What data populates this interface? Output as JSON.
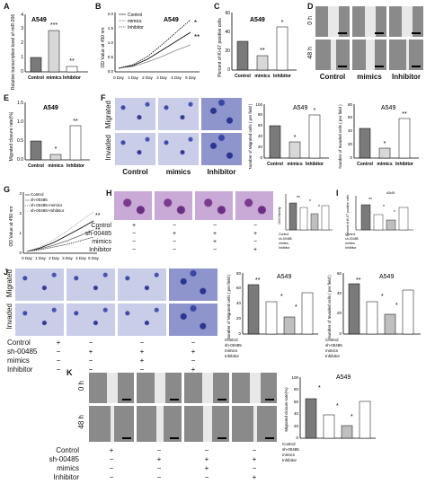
{
  "panel_letters": [
    "A",
    "B",
    "C",
    "D",
    "E",
    "F",
    "G",
    "H",
    "I",
    "J",
    "K"
  ],
  "cell_line": "A549",
  "time_labels": {
    "t0": "0 h",
    "t48": "48 h"
  },
  "row_labels": {
    "migrated": "Migrated",
    "invaded": "Invaded"
  },
  "groups_abc": [
    "Control",
    "mimics",
    "Inhibitor"
  ],
  "treatment_rows": [
    "Control",
    "sh-00485",
    "mimics",
    "Inhibitor"
  ],
  "panel_A": {
    "ylabel": "Relative transcription level of miR-206",
    "categories": [
      "Control",
      "mimics",
      "Inhibitor"
    ],
    "values": [
      1.0,
      3.0,
      0.4
    ],
    "ylim": [
      0,
      4
    ],
    "yticks": [
      "0",
      "1",
      "2",
      "3",
      "4"
    ],
    "sig": [
      "",
      "***",
      "**"
    ]
  },
  "panel_B": {
    "ylabel": "OD Value at 450 nm",
    "xticks": [
      "0 Day",
      "1 Day",
      "2 Day",
      "3 Day",
      "4 Day",
      "5 Day"
    ],
    "yticks": [
      "0.0",
      "0.5",
      "1.0",
      "1.5",
      "2.0"
    ],
    "legend": [
      "Control",
      "mimics",
      "Inhibitor"
    ],
    "series": [
      {
        "name": "Control",
        "values": [
          0.2,
          0.3,
          0.5,
          0.8,
          1.1,
          1.4
        ]
      },
      {
        "name": "mimics",
        "values": [
          0.2,
          0.25,
          0.4,
          0.6,
          0.8,
          1.0
        ]
      },
      {
        "name": "Inhibitor",
        "values": [
          0.2,
          0.35,
          0.6,
          1.0,
          1.4,
          1.8
        ]
      }
    ],
    "sig": [
      "*",
      "**"
    ]
  },
  "panel_C": {
    "ylabel": "Percent of Ki-67 positive cells",
    "categories": [
      "Control",
      "mimics",
      "Inhibitor"
    ],
    "values": [
      30,
      15,
      45
    ],
    "ylim": [
      0,
      60
    ],
    "yticks": [
      "0",
      "20",
      "40",
      "60"
    ],
    "sig": [
      "",
      "**",
      "*"
    ]
  },
  "panel_E": {
    "ylabel": "Migrated closure rate(%)",
    "categories": [
      "Control",
      "mimics",
      "Inhibitor"
    ],
    "values": [
      0.5,
      0.15,
      0.9
    ],
    "ylim": [
      0,
      1.5
    ],
    "yticks": [
      "0.0",
      "0.5",
      "1.0",
      "1.5"
    ],
    "sig": [
      "",
      "*",
      "**"
    ]
  },
  "panel_F1": {
    "ylabel": "Number of Migrated cells ( per field )",
    "categories": [
      "Control",
      "mimics",
      "Inhibitor"
    ],
    "values": [
      60,
      30,
      80
    ],
    "ylim": [
      0,
      100
    ],
    "yticks": [
      "0",
      "20",
      "40",
      "60",
      "80",
      "100"
    ],
    "sig": [
      "",
      "*",
      "*"
    ]
  },
  "panel_F2": {
    "ylabel": "Number of Invaded cells ( per field )",
    "categories": [
      "Control",
      "mimics",
      "Inhibitor"
    ],
    "values": [
      45,
      15,
      60
    ],
    "ylim": [
      0,
      80
    ],
    "yticks": [
      "0",
      "20",
      "40",
      "60",
      "80"
    ],
    "sig": [
      "",
      "*",
      "**"
    ]
  },
  "panel_G": {
    "ylabel": "OD Value at 450 nm",
    "xticks": [
      "0 Day",
      "1 Day",
      "2 Day",
      "3 Day",
      "4 Day",
      "5 Day"
    ],
    "yticks": [
      "0",
      "1",
      "2",
      "3"
    ],
    "legend": [
      "Control",
      "sh-00485",
      "sh-00485+mimics",
      "sh-00485+Inhibitor"
    ],
    "sig": [
      "**",
      "**"
    ]
  },
  "panel_H": {
    "ylabel": "Cell Viability",
    "values": [
      0.9,
      0.75,
      0.55,
      0.8
    ],
    "sig": [
      "**",
      "*",
      "*"
    ]
  },
  "panel_I": {
    "ylabel": "Percent of Ki-67 positive cells",
    "values": [
      0.9,
      0.55,
      0.35,
      0.8
    ],
    "sig": [
      "**",
      "*",
      "*"
    ]
  },
  "panel_J1": {
    "ylabel": "Number of Migrated cells ( per field )",
    "values": [
      65,
      42,
      22,
      55
    ],
    "yticks": [
      "0",
      "20",
      "40",
      "60",
      "80"
    ],
    "sig": [
      "**",
      "*",
      "*"
    ]
  },
  "panel_J2": {
    "ylabel": "Number of Invaded cells ( per field )",
    "values": [
      50,
      32,
      20,
      44
    ],
    "yticks": [
      "0",
      "20",
      "40",
      "60"
    ],
    "sig": [
      "**",
      "*",
      "*"
    ]
  },
  "panel_K": {
    "ylabel": "Migrated closure rate(%)",
    "values": [
      65,
      38,
      20,
      60
    ],
    "yticks": [
      "0",
      "20",
      "40",
      "60",
      "80",
      "100"
    ],
    "sig": [
      "*",
      "*",
      "*"
    ]
  },
  "matrix": {
    "control": [
      "+",
      "−",
      "−",
      "−"
    ],
    "sh": [
      "−",
      "+",
      "+",
      "+"
    ],
    "mimics": [
      "−",
      "−",
      "+",
      "−"
    ],
    "inhibitor": [
      "−",
      "−",
      "−",
      "+"
    ]
  },
  "colors": {
    "dark_bar": "#7a7a7a",
    "light_bar": "#ffffff",
    "mid_bar": "#bfbfbf"
  }
}
